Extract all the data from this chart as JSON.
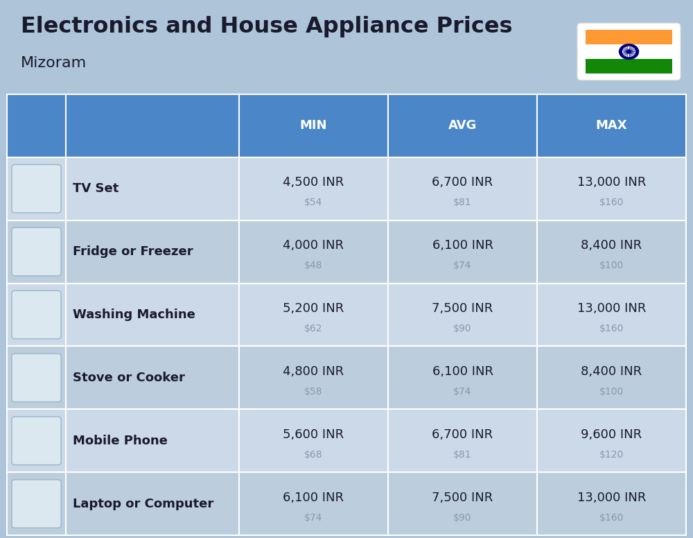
{
  "title_line1": "Electronics and House Appliance Prices",
  "subtitle": "Mizoram",
  "bg_color": "#adc4d9",
  "header_color": "#4a86c8",
  "row_colors": [
    "#ccd9e8",
    "#bccedd"
  ],
  "header_text_color": "#ffffff",
  "col_headers": [
    "MIN",
    "AVG",
    "MAX"
  ],
  "rows": [
    {
      "name": "TV Set",
      "min_inr": "4,500 INR",
      "min_usd": "$54",
      "avg_inr": "6,700 INR",
      "avg_usd": "$81",
      "max_inr": "13,000 INR",
      "max_usd": "$160"
    },
    {
      "name": "Fridge or Freezer",
      "min_inr": "4,000 INR",
      "min_usd": "$48",
      "avg_inr": "6,100 INR",
      "avg_usd": "$74",
      "max_inr": "8,400 INR",
      "max_usd": "$100"
    },
    {
      "name": "Washing Machine",
      "min_inr": "5,200 INR",
      "min_usd": "$62",
      "avg_inr": "7,500 INR",
      "avg_usd": "$90",
      "max_inr": "13,000 INR",
      "max_usd": "$160"
    },
    {
      "name": "Stove or Cooker",
      "min_inr": "4,800 INR",
      "min_usd": "$58",
      "avg_inr": "6,100 INR",
      "avg_usd": "$74",
      "max_inr": "8,400 INR",
      "max_usd": "$100"
    },
    {
      "name": "Mobile Phone",
      "min_inr": "5,600 INR",
      "min_usd": "$68",
      "avg_inr": "6,700 INR",
      "avg_usd": "$81",
      "max_inr": "9,600 INR",
      "max_usd": "$120"
    },
    {
      "name": "Laptop or Computer",
      "min_inr": "6,100 INR",
      "min_usd": "$74",
      "avg_inr": "7,500 INR",
      "avg_usd": "$90",
      "max_inr": "13,000 INR",
      "max_usd": "$160"
    }
  ],
  "flag_orange": "#FF9933",
  "flag_white": "#FFFFFF",
  "flag_green": "#138808",
  "flag_chakra": "#000080",
  "inr_color": "#1a1a2e",
  "usd_color": "#8899aa",
  "name_color": "#1a1a2e",
  "title_color": "#1a1a2e",
  "subtitle_color": "#1a1a2e"
}
